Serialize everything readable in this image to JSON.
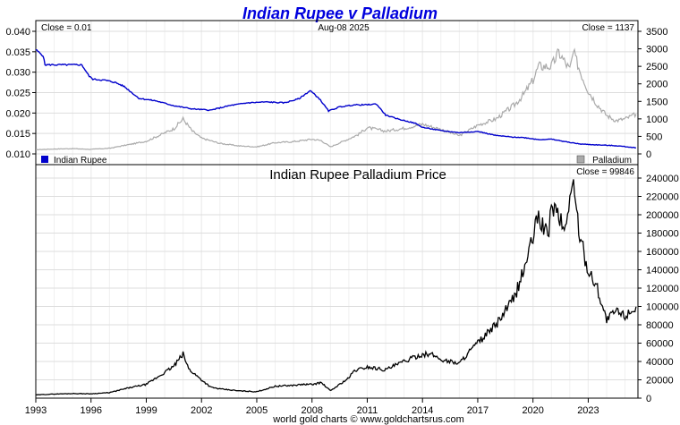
{
  "chart_data": [
    {
      "type": "line",
      "title": "Indian Rupee v Palladium",
      "colors": {
        "title": "#0000dd",
        "rupee": "#0000cc",
        "palladium": "#aaaaaa",
        "grid": "#dddddd"
      },
      "left_axis": {
        "ylim": [
          0.01,
          0.04
        ],
        "ticks": [
          "0.040",
          "0.035",
          "0.030",
          "0.025",
          "0.020",
          "0.015",
          "0.010"
        ]
      },
      "right_axis": {
        "ylim": [
          0,
          3500
        ],
        "ticks": [
          "3500",
          "3000",
          "2500",
          "2000",
          "1500",
          "1000",
          "500",
          "0"
        ]
      },
      "annotations": {
        "left_close": "Close = 0.01",
        "date": "Aug-08  2025",
        "right_close": "Close = 1137"
      },
      "legend": {
        "position": "bottom",
        "left_label": "Indian Rupee",
        "right_label": "Palladium"
      },
      "series": [
        {
          "name": "Indian Rupee",
          "axis": "left",
          "x": [
            1993.0,
            1993.4,
            1993.5,
            1995.5,
            1995.9,
            1996.1,
            1996.8,
            1997.3,
            1997.8,
            1998.6,
            1999.5,
            2000.5,
            2001.5,
            2002.5,
            2003.5,
            2004.5,
            2005.5,
            2006.5,
            2007.3,
            2007.9,
            2008.4,
            2008.9,
            2009.5,
            2010.3,
            2010.9,
            2011.5,
            2012.0,
            2012.7,
            2013.6,
            2014.0,
            2015.0,
            2016.0,
            2017.0,
            2018.0,
            2018.9,
            2019.5,
            2020.3,
            2021.0,
            2022.0,
            2022.6,
            2023.5,
            2024.5,
            2025.6
          ],
          "y": [
            0.0355,
            0.034,
            0.0318,
            0.0318,
            0.029,
            0.0283,
            0.028,
            0.0275,
            0.0265,
            0.0236,
            0.023,
            0.0218,
            0.021,
            0.0207,
            0.0218,
            0.0225,
            0.0227,
            0.0225,
            0.0235,
            0.0255,
            0.0235,
            0.0205,
            0.0215,
            0.022,
            0.022,
            0.0222,
            0.0195,
            0.0185,
            0.0175,
            0.0165,
            0.0157,
            0.0152,
            0.0155,
            0.0145,
            0.0141,
            0.014,
            0.0135,
            0.0136,
            0.0128,
            0.0124,
            0.0122,
            0.012,
            0.0115
          ]
        },
        {
          "name": "Palladium",
          "axis": "right",
          "x": [
            1993.0,
            1994.0,
            1995.0,
            1996.0,
            1997.0,
            1998.0,
            1999.0,
            2000.0,
            2000.5,
            2001.0,
            2001.5,
            2002.0,
            2003.0,
            2004.0,
            2005.0,
            2006.0,
            2007.0,
            2008.0,
            2008.5,
            2009.0,
            2010.0,
            2010.5,
            2011.0,
            2012.0,
            2013.0,
            2014.0,
            2015.0,
            2016.0,
            2017.0,
            2018.0,
            2019.0,
            2019.5,
            2020.0,
            2020.3,
            2021.0,
            2021.4,
            2022.0,
            2022.2,
            2022.6,
            2023.0,
            2023.5,
            2024.0,
            2024.5,
            2025.0,
            2025.6
          ],
          "y": [
            120,
            140,
            150,
            130,
            160,
            260,
            360,
            600,
            720,
            1000,
            650,
            450,
            300,
            230,
            200,
            320,
            350,
            420,
            380,
            200,
            430,
            550,
            750,
            650,
            730,
            850,
            700,
            520,
            820,
            1000,
            1400,
            1700,
            2100,
            2500,
            2500,
            2900,
            2400,
            2900,
            2300,
            1800,
            1400,
            1100,
            950,
            1000,
            1137
          ]
        }
      ]
    },
    {
      "type": "line",
      "title": "Indian Rupee Palladium Price",
      "color": "#000000",
      "ylim": [
        0,
        240000
      ],
      "right_ticks": [
        "240000",
        "220000",
        "200000",
        "180000",
        "160000",
        "140000",
        "120000",
        "100000",
        "80000",
        "60000",
        "40000",
        "20000",
        "0"
      ],
      "annotation": "Close = 99846",
      "x_ticks": [
        "1993",
        "1996",
        "1999",
        "2002",
        "2005",
        "2008",
        "2011",
        "2014",
        "2017",
        "2020",
        "2023"
      ],
      "series": [
        {
          "x": [
            1993.0,
            1994.0,
            1995.0,
            1996.0,
            1997.0,
            1998.0,
            1999.0,
            2000.0,
            2000.5,
            2001.0,
            2001.3,
            2001.7,
            2002.0,
            2002.5,
            2003.0,
            2004.0,
            2005.0,
            2006.0,
            2007.0,
            2007.5,
            2008.0,
            2008.5,
            2009.0,
            2010.0,
            2010.3,
            2011.0,
            2012.0,
            2013.0,
            2014.0,
            2014.6,
            2015.0,
            2016.0,
            2016.5,
            2017.0,
            2018.0,
            2019.0,
            2019.5,
            2020.0,
            2020.3,
            2020.8,
            2021.0,
            2021.4,
            2021.7,
            2022.0,
            2022.2,
            2022.6,
            2023.0,
            2023.5,
            2024.0,
            2024.5,
            2025.0,
            2025.6
          ],
          "y": [
            3500,
            4500,
            5000,
            4800,
            6000,
            11000,
            15000,
            28000,
            35000,
            48000,
            32000,
            25000,
            20000,
            12000,
            10000,
            8000,
            7000,
            13000,
            14000,
            15000,
            15000,
            17000,
            8000,
            22000,
            30000,
            34000,
            31000,
            40000,
            48000,
            47000,
            42000,
            38000,
            50000,
            60000,
            80000,
            110000,
            140000,
            175000,
            200000,
            175000,
            210000,
            200000,
            180000,
            220000,
            230000,
            170000,
            140000,
            120000,
            85000,
            95000,
            90000,
            99846
          ]
        }
      ]
    }
  ],
  "footer": {
    "credit": "world gold charts © www.goldchartsrus.com"
  }
}
